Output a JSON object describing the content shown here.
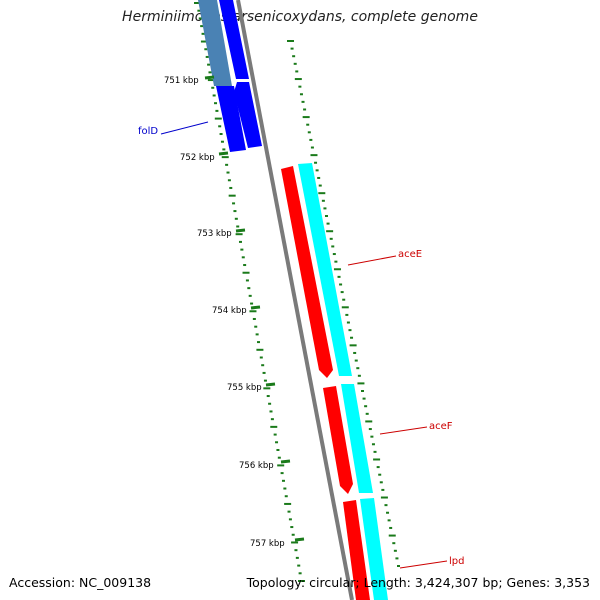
{
  "title": "Herminiimonas arsenicoxydans, complete genome",
  "footer": {
    "accession": "Accession: NC_009138",
    "summary": "Topology: circular; Length: 3,424,307 bp; Genes: 3,353"
  },
  "colors": {
    "background": "#ffffff",
    "backbone": "#808080",
    "tick": "#1a7a1a",
    "gene_forward": "#ff0000",
    "gene_reverse": "#00ffff",
    "gene_folD": "#0000ff",
    "gene_folD_faded": "#4a82b4",
    "label_blue": "#0000cc",
    "label_red": "#cc0000"
  },
  "scale": {
    "unit": "kbp",
    "labels": [
      "751 kbp",
      "752 kbp",
      "753 kbp",
      "754 kbp",
      "755 kbp",
      "756 kbp",
      "757 kbp"
    ]
  },
  "genes": [
    {
      "name": "folD",
      "strand": "forward-pair",
      "color": "blue"
    },
    {
      "name": "aceE",
      "strand": "both",
      "color": "red/cyan"
    },
    {
      "name": "aceF",
      "strand": "both",
      "color": "red/cyan"
    },
    {
      "name": "lpd",
      "strand": "both",
      "color": "red/cyan"
    }
  ]
}
